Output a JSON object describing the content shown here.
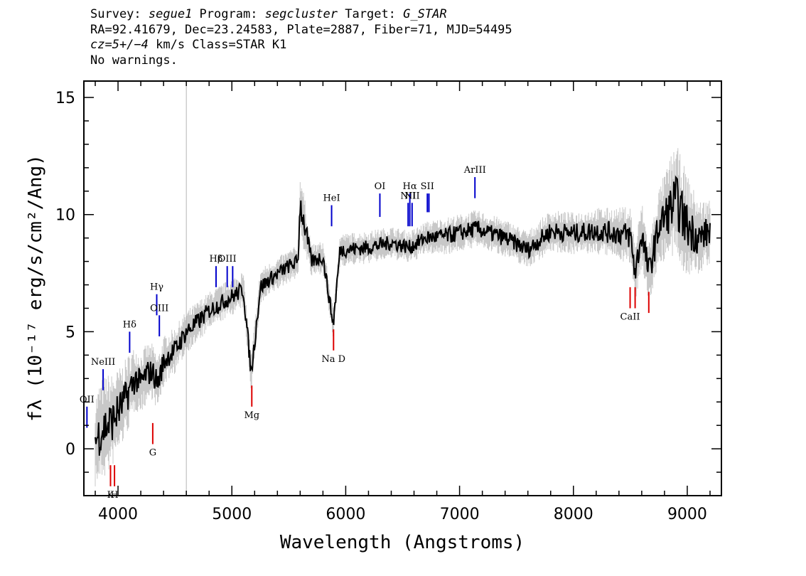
{
  "header": {
    "line1": {
      "survey_label": "Survey: ",
      "survey": "segue1",
      "program_label": " Program: ",
      "program": "segcluster",
      "target_label": " Target: ",
      "target": "G_STAR"
    },
    "line2": "RA=92.41679, Dec=23.24583, Plate=2887, Fiber=71, MJD=54495",
    "line3": {
      "cz": "cz=5+/−4",
      "rest": " km/s Class=STAR K1"
    },
    "line4": "No warnings."
  },
  "chart_data": {
    "type": "line",
    "xlabel": "Wavelength (Angstroms)",
    "ylabel": "fλ (10⁻¹⁷ erg/s/cm²/Ang)",
    "xlim": [
      3700,
      9300
    ],
    "ylim": [
      -2,
      15.7
    ],
    "xticks": [
      4000,
      5000,
      6000,
      7000,
      8000,
      9000
    ],
    "yticks": [
      0,
      5,
      10,
      15
    ],
    "grid": false,
    "vertical_marker_x": 4600,
    "series": [
      {
        "role": "flux",
        "color": "#000000",
        "x": [
          3800,
          3850,
          3900,
          3950,
          4000,
          4050,
          4100,
          4150,
          4200,
          4250,
          4300,
          4350,
          4400,
          4450,
          4500,
          4600,
          4700,
          4800,
          4900,
          5000,
          5100,
          5170,
          5250,
          5350,
          5500,
          5580,
          5600,
          5700,
          5800,
          5890,
          5950,
          6000,
          6200,
          6400,
          6563,
          6700,
          6900,
          7150,
          7400,
          7600,
          7800,
          8000,
          8200,
          8400,
          8500,
          8542,
          8600,
          8662,
          8750,
          8900,
          9000,
          9100,
          9200
        ],
        "y": [
          0.3,
          0.8,
          1.0,
          1.2,
          1.6,
          2.0,
          2.5,
          3.0,
          2.8,
          3.2,
          3.3,
          2.8,
          3.7,
          4.0,
          4.2,
          5.0,
          5.4,
          5.9,
          6.2,
          6.5,
          6.8,
          3.2,
          6.9,
          7.3,
          7.8,
          8.0,
          10.5,
          8.0,
          8.2,
          5.3,
          8.5,
          8.5,
          8.6,
          8.8,
          8.6,
          9.0,
          9.1,
          9.4,
          9.0,
          8.5,
          9.3,
          9.2,
          9.3,
          9.2,
          9.1,
          7.5,
          9.2,
          7.5,
          9.5,
          10.6,
          9.5,
          9.0,
          9.3
        ]
      },
      {
        "role": "error-band",
        "color": "#c8c8c8",
        "x": [
          3800,
          3850,
          3900,
          3950,
          4000,
          4050,
          4100,
          4150,
          4200,
          4250,
          4300,
          4350,
          4400,
          4450,
          4500,
          4600,
          4700,
          4800,
          4900,
          5000,
          5100,
          5170,
          5250,
          5350,
          5500,
          5580,
          5600,
          5700,
          5800,
          5890,
          5950,
          6000,
          6200,
          6400,
          6563,
          6700,
          6900,
          7150,
          7400,
          7600,
          7800,
          8000,
          8200,
          8400,
          8500,
          8542,
          8600,
          8662,
          8750,
          8900,
          9000,
          9100,
          9200
        ],
        "y": [
          0.3,
          0.8,
          1.0,
          1.2,
          1.6,
          2.0,
          2.5,
          3.0,
          2.8,
          3.2,
          3.3,
          2.8,
          3.7,
          4.0,
          4.2,
          5.0,
          5.4,
          5.9,
          6.2,
          6.5,
          6.8,
          3.2,
          6.9,
          7.3,
          7.8,
          8.0,
          10.5,
          8.0,
          8.2,
          5.3,
          8.5,
          8.5,
          8.6,
          8.8,
          8.6,
          9.0,
          9.1,
          9.4,
          9.0,
          8.5,
          9.3,
          9.2,
          9.3,
          9.2,
          9.1,
          7.5,
          9.2,
          7.5,
          9.5,
          10.6,
          9.5,
          9.0,
          9.3
        ],
        "spread": [
          2.0,
          2.2,
          2.2,
          2.0,
          1.8,
          1.7,
          1.6,
          1.4,
          1.3,
          1.3,
          1.2,
          1.2,
          1.1,
          1.0,
          1.0,
          0.9,
          0.9,
          0.8,
          0.8,
          0.8,
          0.8,
          0.8,
          0.8,
          0.7,
          0.7,
          0.7,
          1.5,
          0.7,
          0.7,
          0.7,
          0.7,
          0.7,
          0.7,
          0.7,
          0.7,
          0.7,
          0.8,
          0.8,
          0.8,
          0.8,
          0.9,
          0.9,
          1.0,
          1.1,
          1.3,
          1.3,
          1.4,
          1.4,
          1.6,
          2.5,
          2.2,
          1.6,
          1.4
        ]
      }
    ],
    "emission_lines": [
      {
        "label": "OII",
        "x": 3727,
        "y_bottom": 0.9,
        "y_top": 1.8
      },
      {
        "label": "NeIII",
        "x": 3869,
        "y_bottom": 2.5,
        "y_top": 3.4
      },
      {
        "label": "Hδ",
        "x": 4102,
        "y_bottom": 4.1,
        "y_top": 5.0
      },
      {
        "label": "Hγ",
        "x": 4340,
        "y_bottom": 5.7,
        "y_top": 6.6
      },
      {
        "label": "OIII",
        "x": 4363,
        "y_bottom": 4.8,
        "y_top": 5.7
      },
      {
        "label": "Hβ",
        "x": 4861,
        "y_bottom": 6.9,
        "y_top": 7.8
      },
      {
        "label": "OIII",
        "x": 4959,
        "y_bottom": 6.9,
        "y_top": 7.8
      },
      {
        "label": "",
        "x": 5007,
        "y_bottom": 6.9,
        "y_top": 7.8
      },
      {
        "label": "HeI",
        "x": 5876,
        "y_bottom": 9.5,
        "y_top": 10.4
      },
      {
        "label": "OI",
        "x": 6300,
        "y_bottom": 9.9,
        "y_top": 10.9
      },
      {
        "label": "NII",
        "x": 6548,
        "y_bottom": 9.5,
        "y_top": 10.5
      },
      {
        "label": "Hα",
        "x": 6563,
        "y_bottom": 9.5,
        "y_top": 10.9
      },
      {
        "label": "NII",
        "x": 6583,
        "y_bottom": 9.5,
        "y_top": 10.5
      },
      {
        "label": "SII",
        "x": 6717,
        "y_bottom": 10.1,
        "y_top": 10.9
      },
      {
        "label": "",
        "x": 6731,
        "y_bottom": 10.1,
        "y_top": 10.9
      },
      {
        "label": "ArIII",
        "x": 7135,
        "y_bottom": 10.7,
        "y_top": 11.6
      }
    ],
    "absorption_lines": [
      {
        "label": "K",
        "x": 3934,
        "y_bottom": -1.6,
        "y_top": -0.7
      },
      {
        "label": "H",
        "x": 3969,
        "y_bottom": -1.6,
        "y_top": -0.7
      },
      {
        "label": "G",
        "x": 4305,
        "y_bottom": 0.2,
        "y_top": 1.1
      },
      {
        "label": "Mg",
        "x": 5175,
        "y_bottom": 1.8,
        "y_top": 2.7
      },
      {
        "label": "Na D",
        "x": 5893,
        "y_bottom": 4.2,
        "y_top": 5.1
      },
      {
        "label": "CaII",
        "x": 8498,
        "y_bottom": 6.0,
        "y_top": 6.9
      },
      {
        "label": "",
        "x": 8542,
        "y_bottom": 6.0,
        "y_top": 6.9
      },
      {
        "label": "",
        "x": 8662,
        "y_bottom": 5.8,
        "y_top": 6.7
      }
    ],
    "colors": {
      "emission": "#0000cc",
      "absorption": "#dd0000",
      "marker": "#b4b4b4"
    }
  }
}
